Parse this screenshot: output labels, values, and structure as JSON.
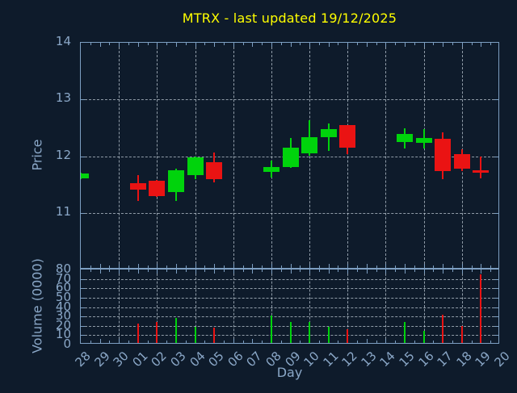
{
  "title": "MTRX - last updated 19/12/2025",
  "colors": {
    "background": "#0e1b2b",
    "title": "#ffff00",
    "axis": "#7d9fc2",
    "label": "#8aa7c7",
    "grid": "#c4ced8",
    "up": "#00d30c",
    "down": "#ea1313"
  },
  "price_axis": {
    "label": "Price",
    "ticks": [
      "14",
      "13",
      "12",
      "11"
    ],
    "range": [
      10,
      14
    ]
  },
  "volume_axis": {
    "label": "Volume (0000)",
    "ticks": [
      "80",
      "70",
      "60",
      "50",
      "40",
      "30",
      "20",
      "10",
      "0"
    ],
    "range": [
      0,
      80
    ]
  },
  "x_axis": {
    "label": "Day",
    "ticks": [
      "28",
      "29",
      "30",
      "01",
      "02",
      "03",
      "04",
      "05",
      "06",
      "07",
      "08",
      "09",
      "10",
      "11",
      "12",
      "13",
      "14",
      "15",
      "16",
      "17",
      "18",
      "19",
      "20"
    ]
  },
  "chart_data": [
    {
      "type": "candlestick",
      "title": "MTRX - last updated 19/12/2025",
      "xlabel": "Day",
      "ylabel": "Price",
      "ylim": [
        10,
        14
      ],
      "grid": "on",
      "x_categories": [
        "28",
        "29",
        "30",
        "01",
        "02",
        "03",
        "04",
        "05",
        "06",
        "07",
        "08",
        "09",
        "10",
        "11",
        "12",
        "13",
        "14",
        "15",
        "16",
        "17",
        "18",
        "19",
        "20"
      ],
      "candles": [
        {
          "day": "28",
          "open": 11.61,
          "high": 11.71,
          "low": 11.6,
          "close": 11.7
        },
        {
          "day": "01",
          "open": 11.52,
          "high": 11.66,
          "low": 11.21,
          "close": 11.41
        },
        {
          "day": "02",
          "open": 11.57,
          "high": 11.58,
          "low": 11.28,
          "close": 11.29
        },
        {
          "day": "03",
          "open": 11.37,
          "high": 11.78,
          "low": 11.21,
          "close": 11.75
        },
        {
          "day": "04",
          "open": 11.66,
          "high": 12.0,
          "low": 11.6,
          "close": 11.98
        },
        {
          "day": "05",
          "open": 11.89,
          "high": 12.06,
          "low": 11.54,
          "close": 11.59
        },
        {
          "day": "08",
          "open": 11.72,
          "high": 11.92,
          "low": 11.62,
          "close": 11.81
        },
        {
          "day": "09",
          "open": 11.81,
          "high": 12.32,
          "low": 11.79,
          "close": 12.15
        },
        {
          "day": "10",
          "open": 12.05,
          "high": 12.63,
          "low": 12.01,
          "close": 12.33
        },
        {
          "day": "11",
          "open": 12.33,
          "high": 12.57,
          "low": 12.09,
          "close": 12.47
        },
        {
          "day": "12",
          "open": 12.55,
          "high": 12.55,
          "low": 12.04,
          "close": 12.15
        },
        {
          "day": "15",
          "open": 12.25,
          "high": 12.49,
          "low": 12.14,
          "close": 12.39
        },
        {
          "day": "16",
          "open": 12.24,
          "high": 12.47,
          "low": 12.14,
          "close": 12.32
        },
        {
          "day": "17",
          "open": 12.31,
          "high": 12.42,
          "low": 11.59,
          "close": 11.74
        },
        {
          "day": "18",
          "open": 12.03,
          "high": 12.12,
          "low": 11.73,
          "close": 11.78
        },
        {
          "day": "19",
          "open": 11.75,
          "high": 11.99,
          "low": 11.61,
          "close": 11.71
        }
      ]
    },
    {
      "type": "bar",
      "ylabel": "Volume (0000)",
      "ylim": [
        0,
        80
      ],
      "grid": "on",
      "bars": [
        {
          "day": "01",
          "value": 22,
          "color": "down"
        },
        {
          "day": "02",
          "value": 24,
          "color": "down"
        },
        {
          "day": "03",
          "value": 28,
          "color": "up"
        },
        {
          "day": "04",
          "value": 19,
          "color": "up"
        },
        {
          "day": "05",
          "value": 18,
          "color": "down"
        },
        {
          "day": "08",
          "value": 31,
          "color": "up"
        },
        {
          "day": "09",
          "value": 24,
          "color": "up"
        },
        {
          "day": "10",
          "value": 24,
          "color": "up"
        },
        {
          "day": "11",
          "value": 19,
          "color": "up"
        },
        {
          "day": "12",
          "value": 16,
          "color": "down"
        },
        {
          "day": "15",
          "value": 24,
          "color": "up"
        },
        {
          "day": "16",
          "value": 15,
          "color": "up"
        },
        {
          "day": "17",
          "value": 32,
          "color": "down"
        },
        {
          "day": "18",
          "value": 20,
          "color": "down"
        },
        {
          "day": "19",
          "value": 75,
          "color": "down"
        }
      ]
    }
  ]
}
